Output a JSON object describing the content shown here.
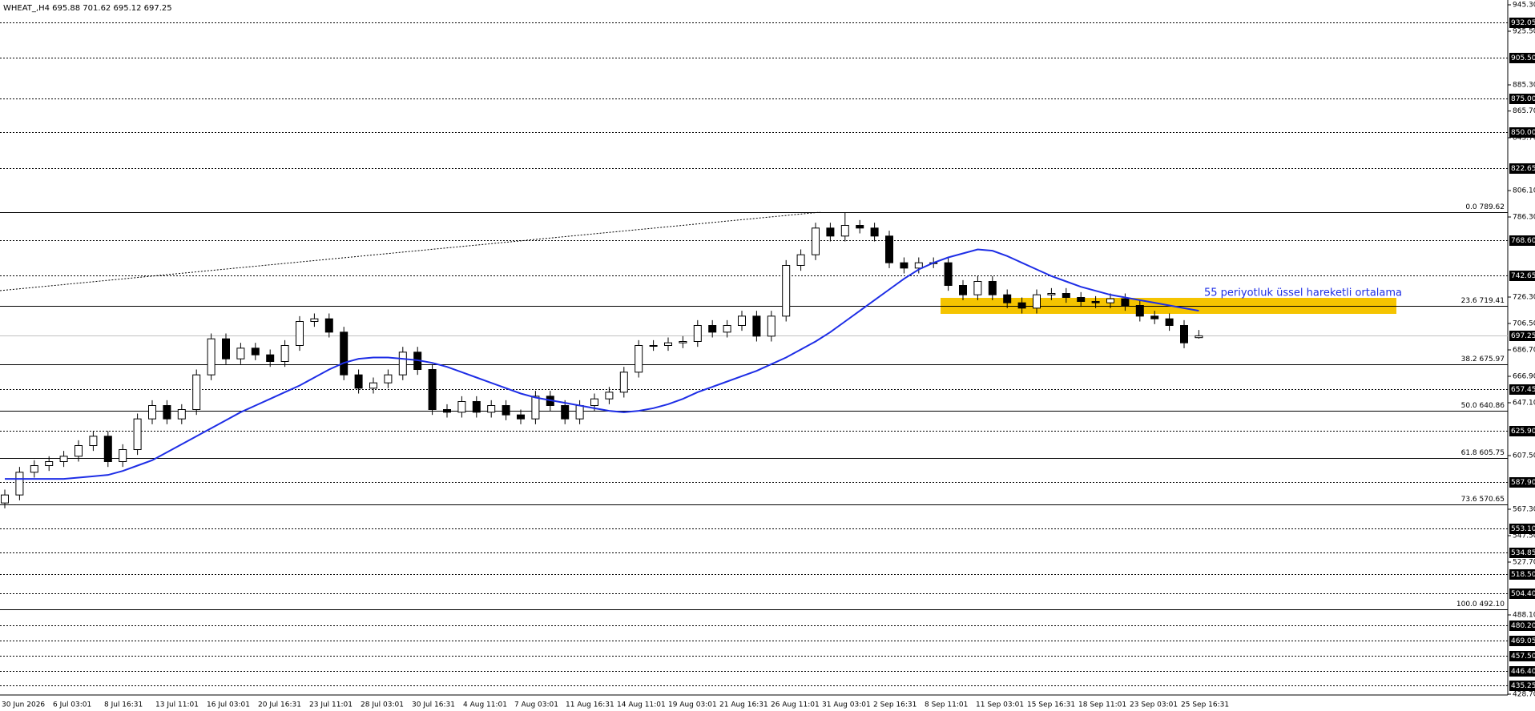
{
  "chart_data": {
    "type": "candlestick",
    "title": "WHEAT_,H4 695.88 701.62 695.12 697.25",
    "annotation": "55 periyotluk üssel hareketli ortalama",
    "x_labels": [
      "30 Jun 2026",
      "6 Jul 03:01",
      "8 Jul 16:31",
      "13 Jul 11:01",
      "16 Jul 03:01",
      "20 Jul 16:31",
      "23 Jul 11:01",
      "28 Jul 03:01",
      "30 Jul 16:31",
      "4 Aug 11:01",
      "7 Aug 03:01",
      "11 Aug 16:31",
      "14 Aug 11:01",
      "19 Aug 03:01",
      "21 Aug 16:31",
      "26 Aug 11:01",
      "31 Aug 03:01",
      "2 Sep 16:31",
      "8 Sep 11:01",
      "11 Sep 03:01",
      "15 Sep 16:31",
      "18 Sep 11:01",
      "23 Sep 03:01",
      "25 Sep 16:31"
    ],
    "open": [
      572,
      578,
      595,
      600,
      603,
      607,
      615,
      622,
      603,
      612,
      635,
      645,
      635,
      642,
      668,
      695,
      680,
      688,
      683,
      678,
      690,
      708,
      710,
      700,
      668,
      658,
      662,
      668,
      685,
      672,
      642,
      640,
      648,
      640,
      645,
      638,
      635,
      652,
      645,
      635,
      645,
      650,
      655,
      670,
      690,
      690,
      692,
      693,
      705,
      700,
      705,
      712,
      697,
      712,
      750,
      758,
      778,
      772,
      780,
      778,
      772,
      752,
      748,
      752,
      752,
      735,
      728,
      738,
      728,
      722,
      718,
      728,
      729,
      726,
      723,
      722,
      725,
      720,
      712,
      710,
      705,
      695.88
    ],
    "high": [
      582,
      599,
      604,
      607,
      611,
      619,
      626,
      626,
      616,
      639,
      649,
      649,
      646,
      672,
      699,
      699,
      692,
      692,
      687,
      694,
      712,
      714,
      714,
      704,
      672,
      666,
      672,
      689,
      689,
      676,
      646,
      652,
      652,
      649,
      649,
      642,
      656,
      656,
      649,
      649,
      654,
      659,
      674,
      694,
      694,
      696,
      697,
      709,
      709,
      709,
      716,
      716,
      716,
      754,
      762,
      782,
      782,
      789.62,
      784,
      782,
      776,
      756,
      756,
      756,
      756,
      739,
      742,
      742,
      732,
      726,
      732,
      733,
      733,
      730,
      727,
      729,
      729,
      724,
      716,
      714,
      709,
      701.62
    ],
    "low": [
      568,
      574,
      591,
      596,
      599,
      603,
      611,
      599,
      599,
      608,
      631,
      631,
      631,
      638,
      664,
      676,
      676,
      679,
      674,
      674,
      686,
      704,
      696,
      664,
      654,
      654,
      658,
      664,
      668,
      638,
      636,
      636,
      636,
      636,
      634,
      631,
      631,
      641,
      631,
      631,
      641,
      646,
      651,
      666,
      686,
      686,
      688,
      689,
      696,
      696,
      701,
      693,
      693,
      708,
      746,
      754,
      768,
      768,
      774,
      768,
      748,
      744,
      744,
      748,
      731,
      724,
      724,
      724,
      718,
      714,
      714,
      724,
      722,
      719,
      718,
      718,
      716,
      708,
      706,
      701,
      688,
      695.12
    ],
    "close": [
      578,
      595,
      600,
      603,
      607,
      615,
      622,
      603,
      612,
      635,
      645,
      635,
      642,
      668,
      695,
      680,
      688,
      683,
      678,
      690,
      708,
      710,
      700,
      668,
      658,
      662,
      668,
      685,
      672,
      642,
      640,
      648,
      640,
      645,
      638,
      635,
      652,
      645,
      635,
      645,
      650,
      655,
      670,
      690,
      690,
      692,
      693,
      705,
      700,
      705,
      712,
      697,
      712,
      750,
      758,
      778,
      772,
      780,
      778,
      772,
      752,
      748,
      752,
      752,
      735,
      728,
      738,
      728,
      722,
      718,
      728,
      729,
      726,
      723,
      722,
      725,
      720,
      712,
      710,
      705,
      692,
      697.25
    ],
    "ema": {
      "color": "#1e2ee6",
      "values": [
        590,
        590,
        590,
        590,
        590,
        591,
        592,
        593,
        596,
        600,
        604,
        610,
        616,
        622,
        628,
        634,
        640,
        645,
        650,
        655,
        660,
        666,
        672,
        677,
        680,
        681,
        681,
        680,
        679,
        677,
        674,
        670,
        666,
        662,
        658,
        654,
        651,
        649,
        647,
        645,
        643,
        641,
        640,
        641,
        643,
        646,
        650,
        655,
        659,
        663,
        667,
        671,
        676,
        681,
        687,
        693,
        700,
        708,
        716,
        724,
        732,
        740,
        747,
        752,
        756,
        759,
        762,
        761,
        757,
        752,
        747,
        742,
        738,
        734,
        731,
        728,
        726,
        724,
        722,
        720,
        718,
        716
      ]
    },
    "ylim": [
      428.7,
      945.3
    ],
    "yticks": [
      {
        "value": 945.3,
        "label": "945.30"
      },
      {
        "value": 925.5,
        "label": "925.50"
      },
      {
        "value": 885.3,
        "label": "885.30"
      },
      {
        "value": 865.7,
        "label": "865.70"
      },
      {
        "value": 845.7,
        "label": "845.70"
      },
      {
        "value": 806.1,
        "label": "806.10"
      },
      {
        "value": 786.3,
        "label": "786.30"
      },
      {
        "value": 726.3,
        "label": "726.30"
      },
      {
        "value": 706.5,
        "label": "706.50"
      },
      {
        "value": 686.7,
        "label": "686.70"
      },
      {
        "value": 666.9,
        "label": "666.90"
      },
      {
        "value": 647.1,
        "label": "647.10"
      },
      {
        "value": 607.5,
        "label": "607.50"
      },
      {
        "value": 567.3,
        "label": "567.30"
      },
      {
        "value": 547.5,
        "label": "547.50"
      },
      {
        "value": 527.7,
        "label": "527.70"
      },
      {
        "value": 488.1,
        "label": "488.10"
      },
      {
        "value": 428.7,
        "label": "428.70"
      }
    ],
    "levels": [
      {
        "value": 932.05,
        "label": "932.05"
      },
      {
        "value": 905.5,
        "label": "905.50"
      },
      {
        "value": 875,
        "label": "875.00"
      },
      {
        "value": 850,
        "label": "850.00"
      },
      {
        "value": 822.65,
        "label": "822.65"
      },
      {
        "value": 768.6,
        "label": "768.60"
      },
      {
        "value": 742.65,
        "label": "742.65"
      },
      {
        "value": 657.45,
        "label": "657.45"
      },
      {
        "value": 625.9,
        "label": "625.90"
      },
      {
        "value": 587.9,
        "label": "587.90"
      },
      {
        "value": 553.1,
        "label": "553.10"
      },
      {
        "value": 534.85,
        "label": "534.85"
      },
      {
        "value": 518.5,
        "label": "518.50"
      },
      {
        "value": 504.4,
        "label": "504.40"
      },
      {
        "value": 480.2,
        "label": "480.20"
      },
      {
        "value": 469.05,
        "label": "469.05"
      },
      {
        "value": 457.5,
        "label": "457.50"
      },
      {
        "value": 446.4,
        "label": "446.40"
      },
      {
        "value": 435.25,
        "label": "435.25"
      }
    ],
    "current_price": {
      "value": 697.25,
      "label": "697.25"
    },
    "fib_levels": [
      {
        "value": 789.62,
        "label": "0.0 789.62"
      },
      {
        "value": 719.41,
        "label": "23.6 719.41"
      },
      {
        "value": 675.97,
        "label": "38.2 675.97"
      },
      {
        "value": 640.86,
        "label": "50.0 640.86"
      },
      {
        "value": 605.75,
        "label": "61.8 605.75"
      },
      {
        "value": 570.65,
        "label": "73.6 570.65"
      },
      {
        "value": 492.1,
        "label": "100.0 492.10"
      }
    ]
  }
}
